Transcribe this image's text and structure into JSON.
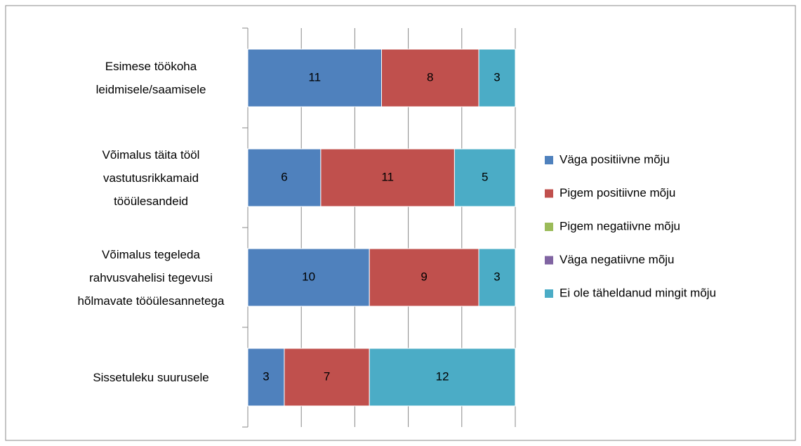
{
  "chart_data": {
    "type": "stacked_barh",
    "categories": [
      "Esimese töökoha\nleidmisele/saamisele",
      "Võimalus täita tööl\nvastutusrikkamaid\ntööülesandeid",
      "Võimalus tegeleda\nrahvusvahelisi tegevusi\nhõlmavate tööülesannetega",
      "Sissetuleku suurusele"
    ],
    "series": [
      {
        "name": "Väga positiivne mõju",
        "color": "#4f81bd",
        "values": [
          11,
          6,
          10,
          3
        ]
      },
      {
        "name": "Pigem positiivne mõju",
        "color": "#c0504d",
        "values": [
          8,
          11,
          9,
          7
        ]
      },
      {
        "name": "Pigem negatiivne mõju",
        "color": "#9bbb59",
        "values": [
          0,
          0,
          0,
          0
        ]
      },
      {
        "name": "Väga negatiivne mõju",
        "color": "#8064a2",
        "values": [
          0,
          0,
          0,
          0
        ]
      },
      {
        "name": "Ei ole täheldanud mingit mõju",
        "color": "#4bacc6",
        "values": [
          3,
          5,
          3,
          12
        ]
      }
    ],
    "xlim": [
      0,
      22
    ],
    "xticks": [
      0,
      4.4,
      8.8,
      13.2,
      17.6,
      22
    ],
    "grid": true,
    "legend": "right"
  }
}
